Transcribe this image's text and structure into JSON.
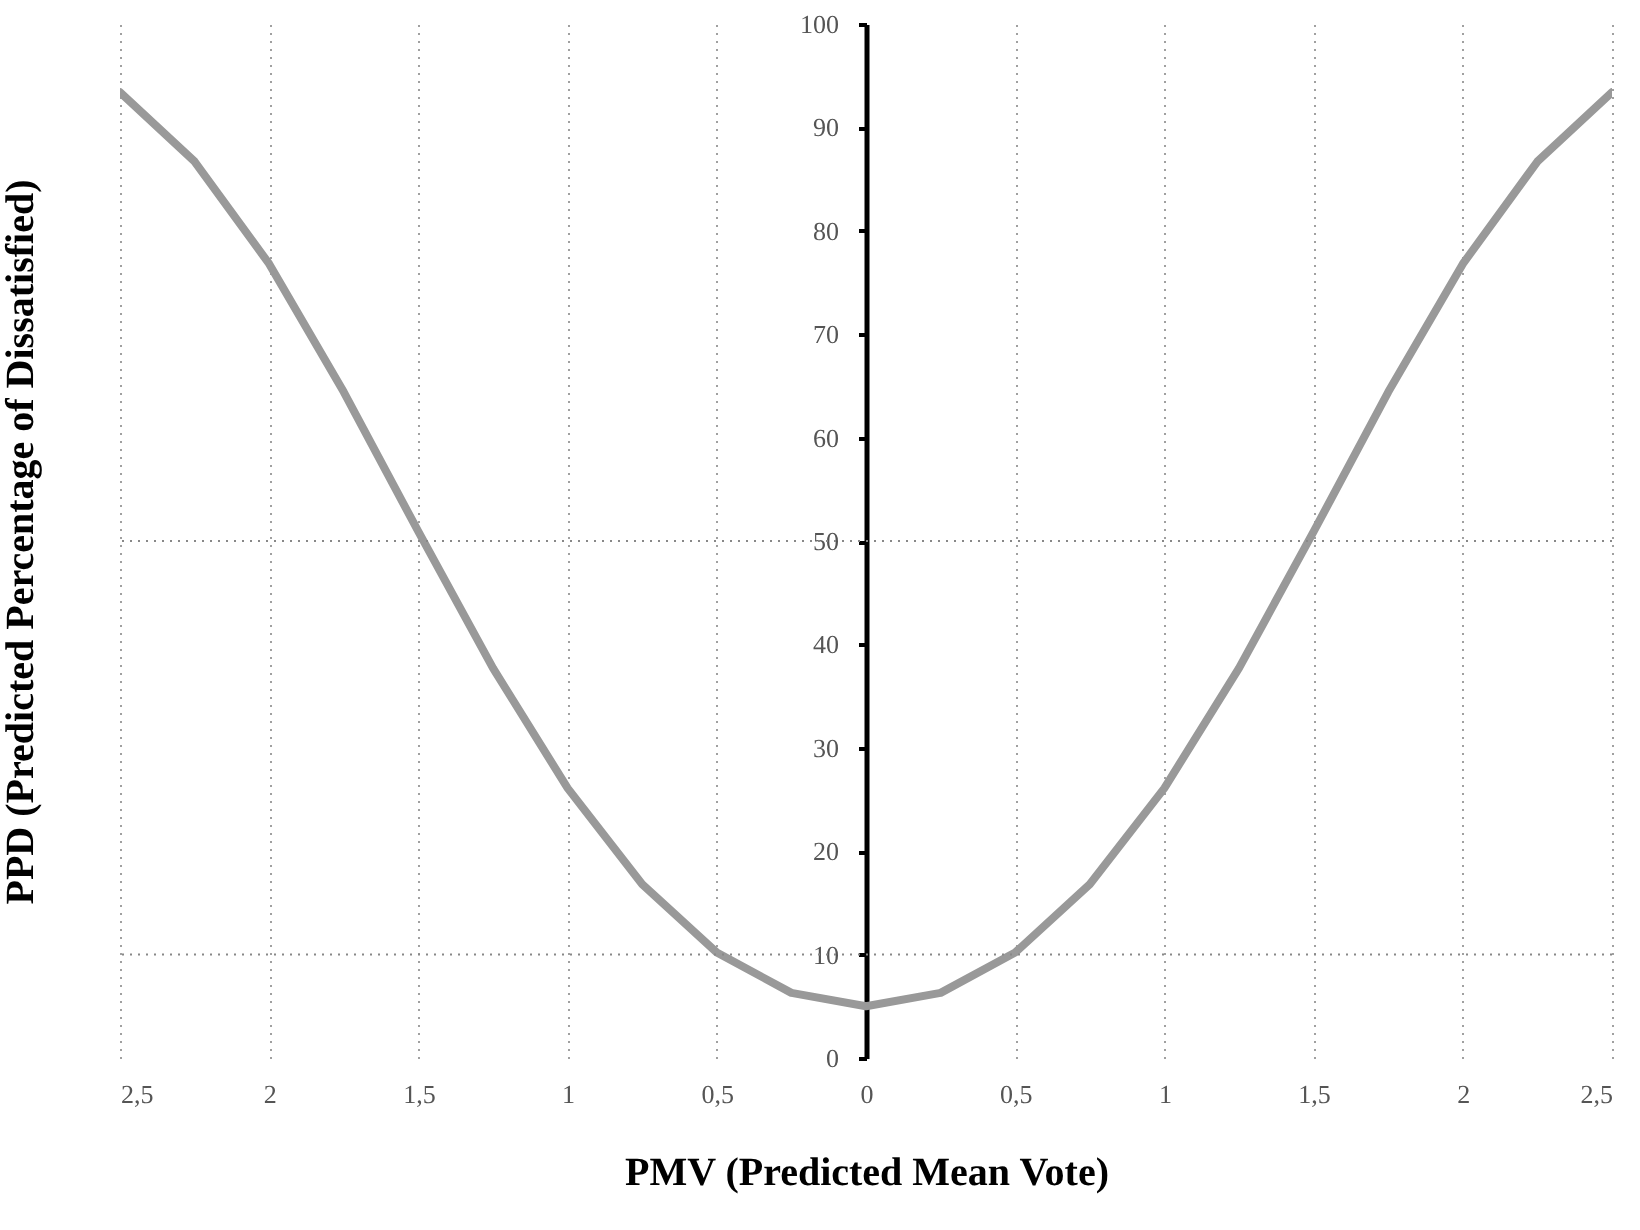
{
  "chart_data": {
    "type": "line",
    "xlabel": "PMV (Predicted Mean Vote)",
    "ylabel": "PPD (Predicted Percentage of Dissatisfied)",
    "x": [
      -2.5,
      -2.25,
      -2,
      -1.75,
      -1.5,
      -1.25,
      -1,
      -0.75,
      -0.5,
      -0.25,
      0,
      0.25,
      0.5,
      0.75,
      1,
      1.25,
      1.5,
      1.75,
      2,
      2.25,
      2.5
    ],
    "series": [
      {
        "color": "#999999",
        "values": [
          93.4,
          86.7,
          76.8,
          64.4,
          50.9,
          37.7,
          26.1,
          16.8,
          10.2,
          6.3,
          5,
          6.3,
          10.2,
          16.8,
          26.1,
          37.7,
          50.9,
          64.4,
          76.8,
          86.7,
          93.4
        ]
      }
    ],
    "xlim": [
      -2.5,
      2.5
    ],
    "xticks": [
      {
        "value": -2.5,
        "label": "2,5"
      },
      {
        "value": -2,
        "label": "2"
      },
      {
        "value": -1.5,
        "label": "1,5"
      },
      {
        "value": -1,
        "label": "1"
      },
      {
        "value": -0.5,
        "label": "0,5"
      },
      0,
      {
        "value": 0.5,
        "label": "0,5"
      },
      1,
      {
        "value": 1.5,
        "label": "1,5"
      },
      2,
      {
        "value": 2.5,
        "label": "2,5"
      }
    ],
    "ylim": [
      0,
      100
    ],
    "yticks": [
      0,
      10,
      20,
      30,
      40,
      50,
      60,
      70,
      80,
      90,
      100
    ],
    "grid": "x",
    "ref_lines": [
      {
        "axis": "y",
        "value": 10,
        "line_style": "dotted"
      },
      {
        "axis": "y",
        "value": 50,
        "line_style": "dotted"
      }
    ],
    "marker": "none",
    "line_style": "solid"
  }
}
